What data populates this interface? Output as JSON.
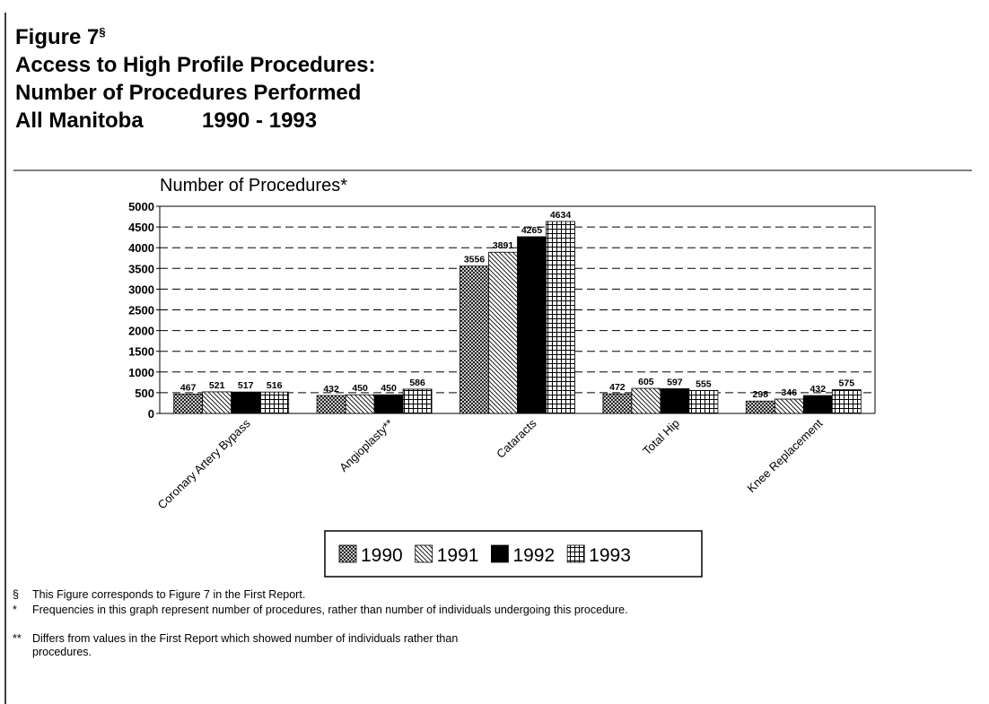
{
  "figure_label": "Figure 7",
  "figure_mark": "§",
  "title_lines": [
    "Access to High Profile Procedures:",
    "Number of Procedures Performed"
  ],
  "region": "All Manitoba",
  "period": "1990 - 1993",
  "chart_data": {
    "type": "bar",
    "y_axis_label": "Number of Procedures*",
    "categories": [
      "Coronary Artery Bypass",
      "Angioplasty**",
      "Cataracts",
      "Total Hip",
      "Knee Replacement"
    ],
    "series": [
      {
        "name": "1990",
        "pattern": "crosshatch",
        "values": [
          467,
          432,
          3556,
          472,
          298
        ]
      },
      {
        "name": "1991",
        "pattern": "diagonal",
        "values": [
          521,
          450,
          3891,
          605,
          346
        ]
      },
      {
        "name": "1992",
        "pattern": "solid",
        "values": [
          517,
          450,
          4265,
          597,
          432
        ]
      },
      {
        "name": "1993",
        "pattern": "grid",
        "values": [
          516,
          586,
          4634,
          555,
          575
        ]
      }
    ],
    "ylim": [
      0,
      5000
    ],
    "yticks": [
      0,
      500,
      1000,
      1500,
      2000,
      2500,
      3000,
      3500,
      4000,
      4500,
      5000
    ],
    "grid": true,
    "legend": "bottom"
  },
  "footnotes": [
    {
      "marker": "§",
      "text": "This Figure corresponds to Figure 7 in the First Report."
    },
    {
      "marker": "*",
      "text": "Frequencies in this graph represent number of procedures, rather than number of individuals undergoing this procedure."
    },
    {
      "marker": "**",
      "text": "Differs from values in the First Report which showed number of individuals rather than procedures."
    }
  ]
}
